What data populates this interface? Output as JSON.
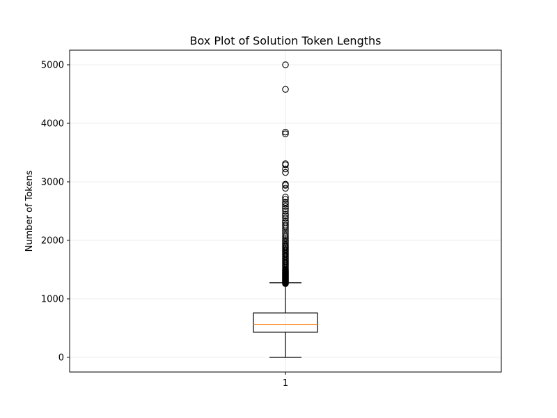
{
  "chart_data": {
    "type": "box",
    "title": "Box Plot of Solution Token Lengths",
    "xlabel": "",
    "ylabel": "Number of Tokens",
    "categories": [
      "1"
    ],
    "ylim": [
      -250,
      5250
    ],
    "yticks": [
      0,
      1000,
      2000,
      3000,
      4000,
      5000
    ],
    "grid": true,
    "box": {
      "min": 0,
      "q1": 430,
      "median": 565,
      "q3": 760,
      "max": 1275
    },
    "outliers": [
      1260,
      1270,
      1280,
      1290,
      1300,
      1310,
      1320,
      1330,
      1340,
      1350,
      1360,
      1370,
      1380,
      1390,
      1400,
      1410,
      1420,
      1430,
      1440,
      1450,
      1460,
      1470,
      1480,
      1490,
      1500,
      1520,
      1540,
      1560,
      1580,
      1600,
      1620,
      1640,
      1660,
      1680,
      1700,
      1720,
      1740,
      1760,
      1780,
      1800,
      1820,
      1840,
      1860,
      1880,
      1900,
      1920,
      1950,
      1980,
      2000,
      2030,
      2060,
      2090,
      2120,
      2160,
      2200,
      2230,
      2260,
      2300,
      2330,
      2380,
      2420,
      2450,
      2500,
      2540,
      2580,
      2620,
      2650,
      2700,
      2740,
      2890,
      2940,
      2960,
      3160,
      3220,
      3290,
      3310,
      3820,
      3850,
      4580,
      5000
    ],
    "colors": {
      "box": "#000000",
      "median": "#ff7f0e",
      "grid": "#e6e6e6",
      "outlier_edge": "#000000"
    }
  }
}
